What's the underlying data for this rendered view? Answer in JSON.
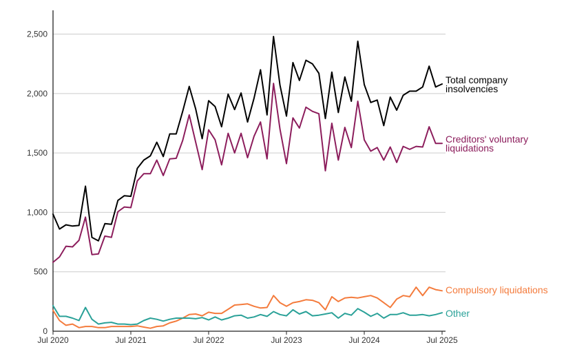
{
  "chart_data": {
    "type": "line",
    "title": "",
    "xlabel": "",
    "ylabel": "",
    "ylim": [
      0,
      2700
    ],
    "y_ticks": [
      0,
      500,
      1000,
      1500,
      2000,
      2500
    ],
    "y_tick_labels": [
      "0",
      "500",
      "1,000",
      "1,500",
      "2,000",
      "2,500"
    ],
    "x_ticks": [
      "2020-07",
      "2021-07",
      "2022-07",
      "2023-07",
      "2024-07",
      "2025-07"
    ],
    "x_tick_labels": [
      "Jul 2020",
      "Jul 2021",
      "Jul 2022",
      "Jul 2023",
      "Jul 2024",
      "Jul 2025"
    ],
    "grid": "horizontal",
    "legend": "direct labels at right end of lines",
    "x_start": "2020-07",
    "x_end": "2025-07",
    "series": [
      {
        "name": "Total company insolvencies",
        "label_lines": [
          "Total company",
          "insolvencies"
        ],
        "color": "#000000",
        "values": [
          985,
          860,
          895,
          885,
          890,
          1220,
          790,
          760,
          905,
          900,
          1100,
          1140,
          1135,
          1370,
          1440,
          1475,
          1590,
          1470,
          1660,
          1660,
          1850,
          2060,
          1870,
          1620,
          1940,
          1890,
          1720,
          1995,
          1865,
          2005,
          1760,
          1960,
          2200,
          1820,
          2480,
          2070,
          1810,
          2260,
          2110,
          2280,
          2250,
          2170,
          1790,
          2180,
          1840,
          2140,
          1935,
          2440,
          2075,
          1925,
          1945,
          1730,
          1970,
          1860,
          1985,
          2020,
          2020,
          2055,
          2230,
          2055,
          2080
        ]
      },
      {
        "name": "Creditors' voluntary liquidations",
        "label_lines": [
          "Creditors' voluntary",
          "liquidations"
        ],
        "color": "#8c1d5c",
        "values": [
          580,
          625,
          715,
          710,
          765,
          960,
          645,
          650,
          800,
          790,
          1005,
          1045,
          1040,
          1265,
          1325,
          1325,
          1440,
          1310,
          1450,
          1455,
          1605,
          1820,
          1590,
          1360,
          1695,
          1610,
          1400,
          1665,
          1500,
          1665,
          1460,
          1640,
          1760,
          1450,
          2085,
          1700,
          1410,
          1795,
          1710,
          1885,
          1850,
          1830,
          1350,
          1750,
          1440,
          1715,
          1545,
          1935,
          1610,
          1515,
          1545,
          1440,
          1550,
          1420,
          1555,
          1530,
          1555,
          1550,
          1720,
          1580,
          1580
        ]
      },
      {
        "name": "Compulsory liquidations",
        "label_lines": [
          "Compulsory liquidations"
        ],
        "color": "#f47b3c",
        "values": [
          175,
          90,
          50,
          60,
          30,
          40,
          40,
          30,
          30,
          40,
          40,
          40,
          40,
          45,
          35,
          25,
          40,
          45,
          70,
          85,
          110,
          140,
          145,
          130,
          160,
          150,
          150,
          185,
          220,
          225,
          230,
          210,
          195,
          200,
          300,
          240,
          210,
          240,
          250,
          265,
          260,
          240,
          180,
          290,
          250,
          280,
          285,
          280,
          290,
          300,
          280,
          240,
          200,
          270,
          300,
          290,
          370,
          300,
          370,
          350,
          340
        ]
      },
      {
        "name": "Other",
        "label_lines": [
          "Other"
        ],
        "color": "#2aa198",
        "values": [
          215,
          125,
          125,
          110,
          90,
          200,
          100,
          60,
          70,
          75,
          60,
          60,
          55,
          60,
          90,
          110,
          100,
          85,
          100,
          110,
          110,
          110,
          105,
          115,
          95,
          120,
          95,
          110,
          130,
          135,
          110,
          120,
          140,
          125,
          165,
          140,
          130,
          180,
          145,
          165,
          130,
          135,
          145,
          155,
          110,
          150,
          135,
          190,
          160,
          125,
          150,
          110,
          140,
          140,
          155,
          135,
          135,
          140,
          130,
          140,
          155
        ]
      }
    ]
  }
}
